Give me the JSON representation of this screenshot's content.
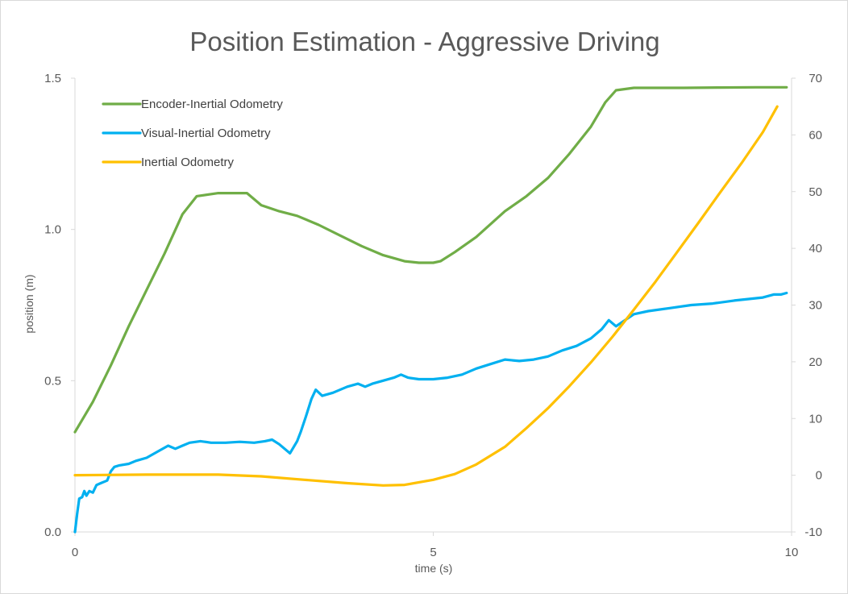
{
  "chart_data": {
    "type": "line",
    "title": "Position Estimation - Aggressive Driving",
    "xlabel": "time (s)",
    "ylabel": "position (m)",
    "y2label": "",
    "xlim": [
      0,
      10
    ],
    "ylim": [
      0,
      1.5
    ],
    "y2lim": [
      -10,
      70
    ],
    "x_ticks": [
      0,
      5,
      10
    ],
    "x_tick_labels": [
      "0",
      "5",
      "10"
    ],
    "y_ticks": [
      0,
      0.5,
      1.0,
      1.5
    ],
    "y_tick_labels": [
      "0.0",
      "0.5",
      "1.0",
      "1.5"
    ],
    "y2_ticks": [
      -10,
      0,
      10,
      20,
      30,
      40,
      50,
      60,
      70
    ],
    "y2_tick_labels": [
      "-10",
      "0",
      "10",
      "20",
      "30",
      "40",
      "50",
      "60",
      "70"
    ],
    "grid": false,
    "legend_position": "top-left",
    "series": [
      {
        "name": "Encoder-Inertial Odometry",
        "color": "#70ad47",
        "axis": "left",
        "x": [
          0,
          0.25,
          0.5,
          0.75,
          1.0,
          1.25,
          1.5,
          1.7,
          2.0,
          2.25,
          2.4,
          2.6,
          2.85,
          3.1,
          3.4,
          3.7,
          4.0,
          4.3,
          4.6,
          4.8,
          5.0,
          5.1,
          5.3,
          5.6,
          6.0,
          6.3,
          6.6,
          6.9,
          7.2,
          7.4,
          7.55,
          7.8,
          8.5,
          9.0,
          9.5,
          9.93
        ],
        "values": [
          0.33,
          0.43,
          0.55,
          0.68,
          0.8,
          0.92,
          1.05,
          1.11,
          1.12,
          1.12,
          1.12,
          1.08,
          1.06,
          1.045,
          1.015,
          0.98,
          0.945,
          0.915,
          0.895,
          0.89,
          0.89,
          0.895,
          0.925,
          0.975,
          1.06,
          1.11,
          1.17,
          1.25,
          1.34,
          1.42,
          1.46,
          1.468,
          1.468,
          1.469,
          1.47,
          1.47
        ]
      },
      {
        "name": "Visual-Inertial Odometry",
        "color": "#00b0f0",
        "axis": "left",
        "x": [
          0,
          0.03,
          0.06,
          0.1,
          0.13,
          0.16,
          0.2,
          0.25,
          0.3,
          0.35,
          0.45,
          0.5,
          0.55,
          0.62,
          0.75,
          0.85,
          1.0,
          1.15,
          1.3,
          1.4,
          1.5,
          1.6,
          1.75,
          1.9,
          2.1,
          2.3,
          2.5,
          2.65,
          2.75,
          2.85,
          2.95,
          3.0,
          3.1,
          3.15,
          3.22,
          3.3,
          3.36,
          3.45,
          3.6,
          3.8,
          3.95,
          4.05,
          4.15,
          4.3,
          4.45,
          4.55,
          4.65,
          4.8,
          5.0,
          5.2,
          5.4,
          5.6,
          5.8,
          6.0,
          6.2,
          6.4,
          6.6,
          6.8,
          7.0,
          7.2,
          7.35,
          7.45,
          7.55,
          7.8,
          8.0,
          8.3,
          8.6,
          8.9,
          9.2,
          9.4,
          9.6,
          9.75,
          9.85,
          9.93
        ],
        "values": [
          0.0,
          0.06,
          0.11,
          0.115,
          0.135,
          0.12,
          0.135,
          0.13,
          0.155,
          0.16,
          0.17,
          0.2,
          0.215,
          0.22,
          0.225,
          0.235,
          0.245,
          0.265,
          0.285,
          0.275,
          0.285,
          0.295,
          0.3,
          0.295,
          0.295,
          0.298,
          0.295,
          0.3,
          0.305,
          0.29,
          0.27,
          0.26,
          0.3,
          0.33,
          0.38,
          0.44,
          0.47,
          0.45,
          0.46,
          0.48,
          0.49,
          0.48,
          0.49,
          0.5,
          0.51,
          0.52,
          0.51,
          0.505,
          0.505,
          0.51,
          0.52,
          0.54,
          0.555,
          0.57,
          0.565,
          0.57,
          0.58,
          0.6,
          0.615,
          0.64,
          0.67,
          0.7,
          0.68,
          0.72,
          0.73,
          0.74,
          0.75,
          0.755,
          0.765,
          0.77,
          0.775,
          0.785,
          0.785,
          0.79
        ]
      },
      {
        "name": "Inertial Odometry",
        "color": "#ffc000",
        "axis": "right",
        "x": [
          0,
          1.0,
          2.0,
          2.6,
          3.2,
          3.8,
          4.3,
          4.6,
          5.0,
          5.3,
          5.6,
          6.0,
          6.3,
          6.6,
          6.9,
          7.2,
          7.5,
          7.8,
          8.1,
          8.4,
          8.7,
          9.0,
          9.3,
          9.6,
          9.8
        ],
        "values": [
          0,
          0.1,
          0.1,
          -0.2,
          -0.8,
          -1.4,
          -1.8,
          -1.7,
          -0.8,
          0.2,
          1.9,
          5.0,
          8.3,
          11.8,
          15.7,
          19.9,
          24.4,
          29.2,
          34.1,
          39.3,
          44.5,
          49.8,
          55.0,
          60.5,
          65.0
        ]
      }
    ]
  }
}
